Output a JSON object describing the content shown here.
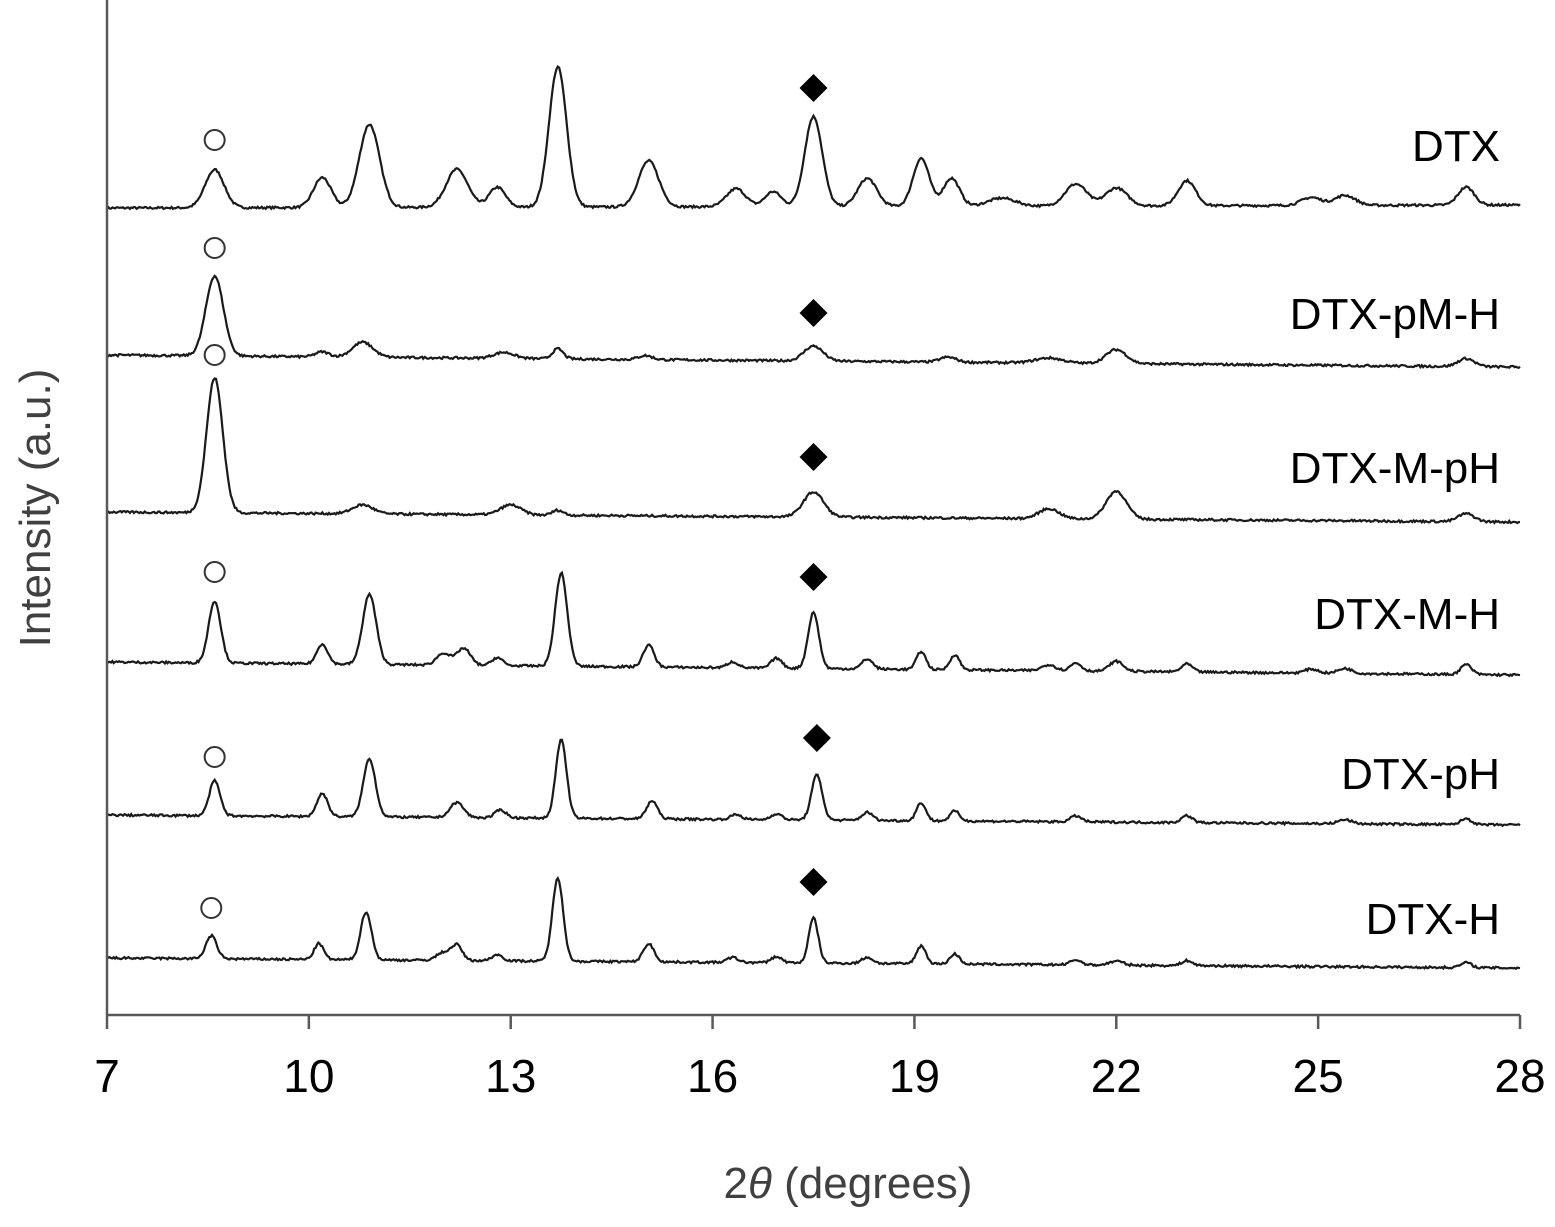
{
  "chart_data": {
    "type": "line",
    "title": "",
    "xlabel_prefix": "2",
    "xlabel_symbol": "θ",
    "xlabel_suffix": " (degrees)",
    "ylabel": "Intensity (a.u.)",
    "xlim": [
      7,
      28
    ],
    "ylim": [
      0,
      1015
    ],
    "xticks": [
      "7",
      "10",
      "13",
      "16",
      "19",
      "22",
      "25",
      "28"
    ],
    "xtick_values": [
      7,
      10,
      13,
      16,
      19,
      22,
      25,
      28
    ],
    "grid": false,
    "markers": {
      "circle": "open circle",
      "diamond": "filled diamond"
    },
    "series": [
      {
        "name": "DTX",
        "baseline": [
          807,
          810
        ],
        "circle": [
          8.6,
          875
        ],
        "diamond": [
          17.5,
          927
        ],
        "label_y": 870,
        "peaks": [
          [
            8.6,
            38,
            0.14
          ],
          [
            10.2,
            30,
            0.13
          ],
          [
            10.9,
            83,
            0.15
          ],
          [
            12.2,
            38,
            0.16
          ],
          [
            12.8,
            20,
            0.12
          ],
          [
            13.7,
            140,
            0.13
          ],
          [
            15.05,
            46,
            0.15
          ],
          [
            16.35,
            18,
            0.14
          ],
          [
            16.9,
            15,
            0.12
          ],
          [
            17.5,
            90,
            0.13
          ],
          [
            18.3,
            28,
            0.14
          ],
          [
            19.1,
            48,
            0.12
          ],
          [
            19.55,
            28,
            0.12
          ],
          [
            20.3,
            8,
            0.2
          ],
          [
            21.4,
            22,
            0.16
          ],
          [
            22.0,
            18,
            0.16
          ],
          [
            23.05,
            25,
            0.13
          ],
          [
            24.9,
            8,
            0.15
          ],
          [
            25.4,
            10,
            0.15
          ],
          [
            27.2,
            18,
            0.12
          ]
        ]
      },
      {
        "name": "DTX-pM-H",
        "baseline": [
          660,
          648
        ],
        "circle": [
          8.6,
          767
        ],
        "diamond": [
          17.5,
          702
        ],
        "label_y": 702,
        "peaks": [
          [
            8.6,
            80,
            0.13
          ],
          [
            10.2,
            5,
            0.1
          ],
          [
            10.8,
            15,
            0.15
          ],
          [
            12.9,
            6,
            0.15
          ],
          [
            13.7,
            10,
            0.08
          ],
          [
            15.0,
            4,
            0.1
          ],
          [
            17.5,
            15,
            0.14
          ],
          [
            19.5,
            5,
            0.12
          ],
          [
            21.0,
            5,
            0.2
          ],
          [
            22.0,
            14,
            0.15
          ],
          [
            27.2,
            8,
            0.12
          ]
        ]
      },
      {
        "name": "DTX-M-pH",
        "baseline": [
          503,
          493
        ],
        "circle": [
          8.6,
          660
        ],
        "diamond": [
          17.5,
          558
        ],
        "label_y": 548,
        "peaks": [
          [
            8.6,
            135,
            0.12
          ],
          [
            10.8,
            9,
            0.15
          ],
          [
            13.0,
            10,
            0.15
          ],
          [
            13.7,
            5,
            0.08
          ],
          [
            17.5,
            25,
            0.15
          ],
          [
            21.0,
            10,
            0.15
          ],
          [
            22.0,
            28,
            0.15
          ],
          [
            27.2,
            8,
            0.12
          ]
        ]
      },
      {
        "name": "DTX-M-H",
        "baseline": [
          353,
          340
        ],
        "circle": [
          8.6,
          443
        ],
        "diamond": [
          17.5,
          438
        ],
        "label_y": 402,
        "peaks": [
          [
            8.6,
            62,
            0.09
          ],
          [
            10.2,
            20,
            0.08
          ],
          [
            10.9,
            70,
            0.1
          ],
          [
            12.0,
            12,
            0.1
          ],
          [
            12.3,
            17,
            0.1
          ],
          [
            12.8,
            8,
            0.08
          ],
          [
            13.75,
            93,
            0.09
          ],
          [
            15.05,
            22,
            0.08
          ],
          [
            16.3,
            6,
            0.08
          ],
          [
            16.95,
            10,
            0.08
          ],
          [
            17.5,
            56,
            0.08
          ],
          [
            18.3,
            10,
            0.08
          ],
          [
            19.1,
            18,
            0.07
          ],
          [
            19.6,
            15,
            0.07
          ],
          [
            21.0,
            6,
            0.1
          ],
          [
            21.4,
            8,
            0.08
          ],
          [
            22.0,
            10,
            0.1
          ],
          [
            23.05,
            8,
            0.08
          ],
          [
            24.9,
            4,
            0.1
          ],
          [
            25.4,
            5,
            0.1
          ],
          [
            27.2,
            10,
            0.08
          ]
        ]
      },
      {
        "name": "DTX-pH",
        "baseline": [
          200,
          190
        ],
        "circle": [
          8.6,
          258
        ],
        "diamond": [
          17.55,
          277
        ],
        "label_y": 242,
        "peaks": [
          [
            8.6,
            35,
            0.08
          ],
          [
            10.2,
            23,
            0.08
          ],
          [
            10.9,
            58,
            0.09
          ],
          [
            12.2,
            15,
            0.1
          ],
          [
            12.85,
            8,
            0.08
          ],
          [
            13.75,
            78,
            0.08
          ],
          [
            15.1,
            18,
            0.08
          ],
          [
            16.35,
            5,
            0.08
          ],
          [
            16.95,
            6,
            0.08
          ],
          [
            17.55,
            45,
            0.08
          ],
          [
            18.3,
            8,
            0.08
          ],
          [
            19.1,
            18,
            0.07
          ],
          [
            19.6,
            10,
            0.07
          ],
          [
            21.4,
            6,
            0.08
          ],
          [
            23.05,
            7,
            0.08
          ],
          [
            25.4,
            4,
            0.1
          ],
          [
            27.2,
            6,
            0.08
          ]
        ]
      },
      {
        "name": "DTX-H",
        "baseline": [
          57,
          47
        ],
        "circle": [
          8.55,
          107
        ],
        "diamond": [
          17.5,
          133
        ],
        "label_y": 97,
        "peaks": [
          [
            8.55,
            23,
            0.08
          ],
          [
            10.15,
            16,
            0.07
          ],
          [
            10.85,
            48,
            0.08
          ],
          [
            12.0,
            8,
            0.1
          ],
          [
            12.2,
            15,
            0.08
          ],
          [
            12.8,
            6,
            0.08
          ],
          [
            13.7,
            83,
            0.08
          ],
          [
            15.05,
            18,
            0.08
          ],
          [
            16.3,
            5,
            0.08
          ],
          [
            16.95,
            6,
            0.08
          ],
          [
            17.5,
            45,
            0.07
          ],
          [
            18.3,
            6,
            0.08
          ],
          [
            19.1,
            18,
            0.07
          ],
          [
            19.6,
            10,
            0.07
          ],
          [
            21.4,
            5,
            0.08
          ],
          [
            22.0,
            4,
            0.1
          ],
          [
            23.05,
            5,
            0.08
          ],
          [
            27.2,
            5,
            0.08
          ]
        ]
      }
    ]
  }
}
